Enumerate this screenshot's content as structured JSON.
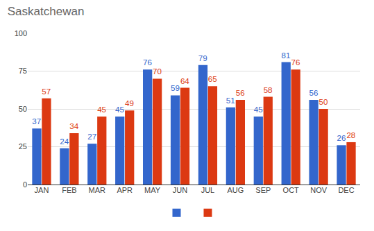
{
  "chart_data": {
    "type": "bar",
    "title": "Saskatchewan",
    "categories": [
      "JAN",
      "FEB",
      "MAR",
      "APR",
      "MAY",
      "JUN",
      "JUL",
      "AUG",
      "SEP",
      "OCT",
      "NOV",
      "DEC"
    ],
    "series": [
      {
        "color": "#3366cc",
        "values": [
          37,
          24,
          27,
          45,
          76,
          59,
          79,
          51,
          45,
          81,
          56,
          26
        ]
      },
      {
        "color": "#dc3912",
        "values": [
          57,
          34,
          45,
          49,
          70,
          64,
          65,
          56,
          58,
          76,
          50,
          28
        ]
      }
    ],
    "ylim": [
      0,
      100
    ],
    "yticks": [
      0,
      25,
      50,
      75,
      100
    ],
    "grid": true,
    "data_labels": true,
    "legend": "bottom"
  }
}
